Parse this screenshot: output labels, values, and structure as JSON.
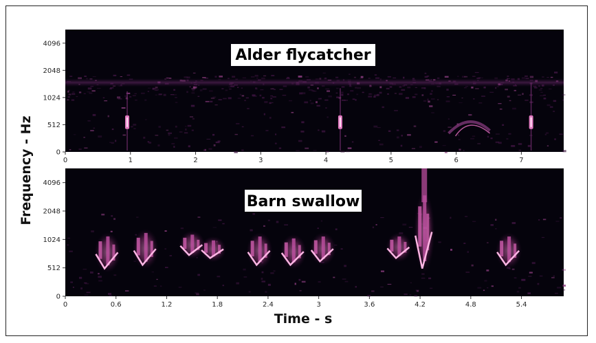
{
  "figure": {
    "xlabel": "Time - s",
    "ylabel": "Frequency - Hz"
  },
  "chart_data": [
    {
      "type": "heatmap",
      "title": "Alder flycatcher",
      "xlim": [
        0,
        7.65
      ],
      "x_ticks": [
        0,
        1,
        2,
        3,
        4,
        5,
        6,
        7
      ],
      "x_tick_labels": [
        "0",
        "1",
        "2",
        "3",
        "4",
        "5",
        "6",
        "7"
      ],
      "y_scale": "log",
      "y_ticks": [
        0,
        512,
        1024,
        2048,
        4096
      ],
      "y_tick_labels": [
        "0",
        "512",
        "1024",
        "2048",
        "4096"
      ],
      "colormap": "magma",
      "background_color": "#05030c",
      "accent_color": "#e07ac0",
      "noise_band_freq_hz": 1500,
      "events": [
        {
          "time_s": 0.95,
          "freq_low_hz": 430,
          "freq_high_hz": 650,
          "spike_hz": 1200
        },
        {
          "time_s": 4.22,
          "freq_low_hz": 430,
          "freq_high_hz": 650,
          "spike_hz": 1300
        },
        {
          "time_s": 7.15,
          "freq_low_hz": 430,
          "freq_high_hz": 650,
          "spike_hz": 1500
        },
        {
          "time_s": 6.2,
          "freq_low_hz": 350,
          "freq_high_hz": 600,
          "spike_hz": 600
        }
      ]
    },
    {
      "type": "heatmap",
      "title": "Barn swallow",
      "xlim": [
        0,
        5.9
      ],
      "x_ticks": [
        0,
        0.6,
        1.2,
        1.8,
        2.4,
        3.0,
        3.6,
        4.2,
        4.8,
        5.4
      ],
      "x_tick_labels": [
        "0",
        "0.6",
        "1.2",
        "1.8",
        "2.4",
        "3",
        "3.6",
        "4.2",
        "4.8",
        "5.4"
      ],
      "y_scale": "log",
      "y_ticks": [
        0,
        512,
        1024,
        2048,
        4096
      ],
      "y_tick_labels": [
        "0",
        "512",
        "1024",
        "2048",
        "4096"
      ],
      "colormap": "magma",
      "background_color": "#05030c",
      "accent_color": "#e07ac0",
      "events": [
        {
          "time_s": 0.5,
          "freq_low_hz": 500,
          "freq_high_hz": 1100
        },
        {
          "time_s": 0.95,
          "freq_low_hz": 550,
          "freq_high_hz": 1200
        },
        {
          "time_s": 1.5,
          "freq_low_hz": 700,
          "freq_high_hz": 1150
        },
        {
          "time_s": 1.75,
          "freq_low_hz": 650,
          "freq_high_hz": 1000
        },
        {
          "time_s": 2.3,
          "freq_low_hz": 550,
          "freq_high_hz": 1100
        },
        {
          "time_s": 2.7,
          "freq_low_hz": 550,
          "freq_high_hz": 1050
        },
        {
          "time_s": 3.05,
          "freq_low_hz": 600,
          "freq_high_hz": 1100
        },
        {
          "time_s": 3.95,
          "freq_low_hz": 650,
          "freq_high_hz": 1100
        },
        {
          "time_s": 4.25,
          "freq_low_hz": 500,
          "freq_high_hz": 3000
        },
        {
          "time_s": 5.25,
          "freq_low_hz": 550,
          "freq_high_hz": 1100
        }
      ]
    }
  ]
}
